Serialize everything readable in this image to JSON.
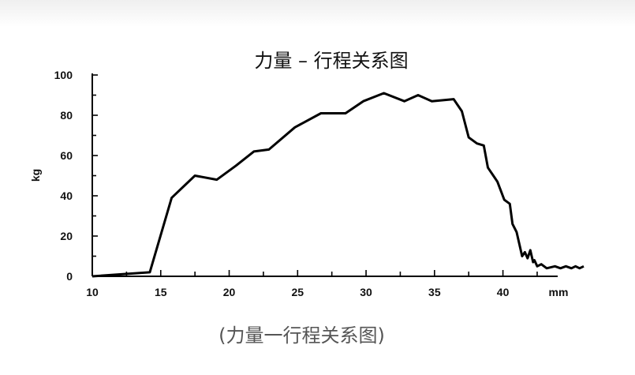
{
  "caption": "(力量一行程关系图)",
  "chart_data": {
    "type": "line",
    "title": "力量 – 行程关系图",
    "xlabel": "",
    "x_unit": "mm",
    "ylabel": "kg",
    "xlim": [
      10,
      44
    ],
    "ylim": [
      0,
      100
    ],
    "x_ticks": [
      10,
      15,
      20,
      25,
      30,
      35,
      40
    ],
    "y_ticks": [
      0,
      20,
      40,
      60,
      80,
      100
    ],
    "grid": false,
    "line_color": "#000000",
    "series": [
      {
        "x": [
          10,
          14.2,
          15.8,
          17.5,
          19.1,
          20.5,
          21.8,
          22.9,
          24.8,
          26.7,
          28.5,
          29.8,
          31.3,
          32.8,
          33.8,
          34.8,
          36.4,
          37.0,
          37.5,
          38.1,
          38.6,
          38.9,
          39.4,
          39.6,
          40.1,
          40.5,
          40.7,
          41.0,
          41.4,
          41.6,
          41.8,
          42.0,
          42.2,
          42.3,
          42.5,
          42.8,
          43.2,
          43.8,
          44.2,
          44.6,
          45.0,
          45.3,
          45.6,
          45.9
        ],
        "y": [
          0,
          2,
          39,
          50,
          48,
          55,
          62,
          63,
          74,
          81,
          81,
          87,
          91,
          87,
          90,
          87,
          88,
          82,
          69,
          66,
          65,
          54,
          49,
          47,
          38,
          36,
          26,
          22,
          10,
          12,
          9,
          13,
          7,
          8,
          5,
          6,
          4,
          5,
          4,
          5,
          4,
          5,
          4,
          5
        ]
      }
    ]
  }
}
